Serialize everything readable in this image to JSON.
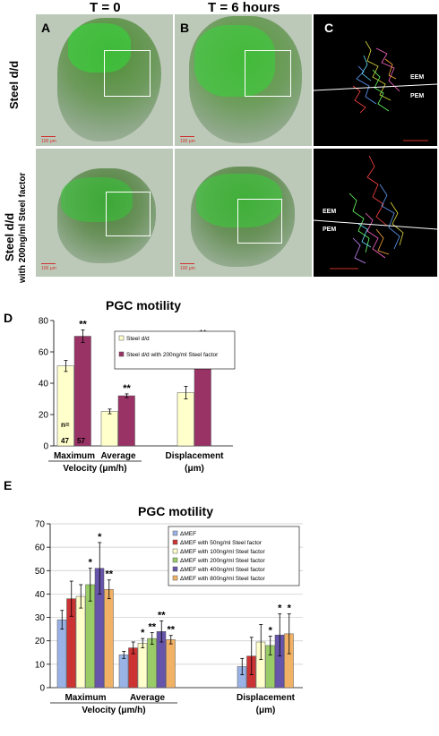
{
  "figure": {
    "col_headers": [
      "T = 0",
      "T = 6 hours"
    ],
    "panel_letters": [
      "A",
      "B",
      "C",
      "D",
      "E"
    ],
    "row_labels": [
      "Steel d/d",
      "Steel d/d",
      "with 200ng/ml Steel factor"
    ],
    "scale_bar_label": "100 μm",
    "track_labels": [
      "EEM",
      "PEM"
    ]
  },
  "chart_data": [
    {
      "type": "bar",
      "title": "PGC motility",
      "categories": [
        "Maximum",
        "Average",
        "Displacement"
      ],
      "group_label": "Velocity (μm/h)",
      "displacement_unit": "(μm)",
      "ylim": [
        0,
        80
      ],
      "yticks": [
        0,
        20,
        40,
        60,
        80
      ],
      "series": [
        {
          "name": "Steel d/d",
          "values": [
            51,
            22,
            34
          ],
          "errors": [
            3.5,
            1.5,
            4
          ],
          "stars": [
            "",
            "",
            ""
          ],
          "color": "#ffffcc"
        },
        {
          "name": "Steel d/d with 200ng/ml Steel factor",
          "values": [
            70,
            32,
            61
          ],
          "errors": [
            4,
            1.2,
            7
          ],
          "stars": [
            "**",
            "**",
            "**"
          ],
          "color": "#993366"
        }
      ],
      "n_label": "n=",
      "n_values": [
        "47",
        "57"
      ]
    },
    {
      "type": "bar",
      "title": "PGC motility",
      "categories": [
        "Maximum",
        "Average",
        "Displacement"
      ],
      "group_label": "Velocity (μm/h)",
      "displacement_unit": "(μm)",
      "ylim": [
        0,
        70
      ],
      "yticks": [
        0,
        10,
        20,
        30,
        40,
        50,
        60,
        70
      ],
      "grid": true,
      "series": [
        {
          "name": "ΔMEF",
          "values": [
            29,
            14,
            9
          ],
          "errors": [
            4,
            1.5,
            3.5
          ],
          "stars": [
            "",
            "",
            ""
          ],
          "color": "#99b3e6"
        },
        {
          "name": "ΔMEF with 50ng/ml Steel factor",
          "values": [
            38,
            17,
            13.5
          ],
          "errors": [
            7.5,
            2.5,
            8
          ],
          "stars": [
            "",
            "",
            ""
          ],
          "color": "#cc3333"
        },
        {
          "name": "ΔMEF with 100ng/ml Steel factor",
          "values": [
            39,
            19,
            19.5
          ],
          "errors": [
            5,
            2,
            7.5
          ],
          "stars": [
            "",
            "*",
            ""
          ],
          "color": "#ffffcc"
        },
        {
          "name": "ΔMEF with 200ng/ml Steel factor",
          "values": [
            44,
            21,
            18
          ],
          "errors": [
            7,
            2.5,
            4
          ],
          "stars": [
            "*",
            "**",
            "*"
          ],
          "color": "#99cc66"
        },
        {
          "name": "ΔMEF with 400ng/ml Steel factor",
          "values": [
            51,
            24,
            22.5
          ],
          "errors": [
            11,
            4.5,
            9
          ],
          "stars": [
            "*",
            "**",
            "*"
          ],
          "color": "#6655aa"
        },
        {
          "name": "ΔMEF with 800ng/ml Steel factor",
          "values": [
            42,
            20.5,
            23
          ],
          "errors": [
            4,
            1.8,
            8.5
          ],
          "stars": [
            "**",
            "**",
            "*"
          ],
          "color": "#f2b266"
        }
      ]
    }
  ]
}
